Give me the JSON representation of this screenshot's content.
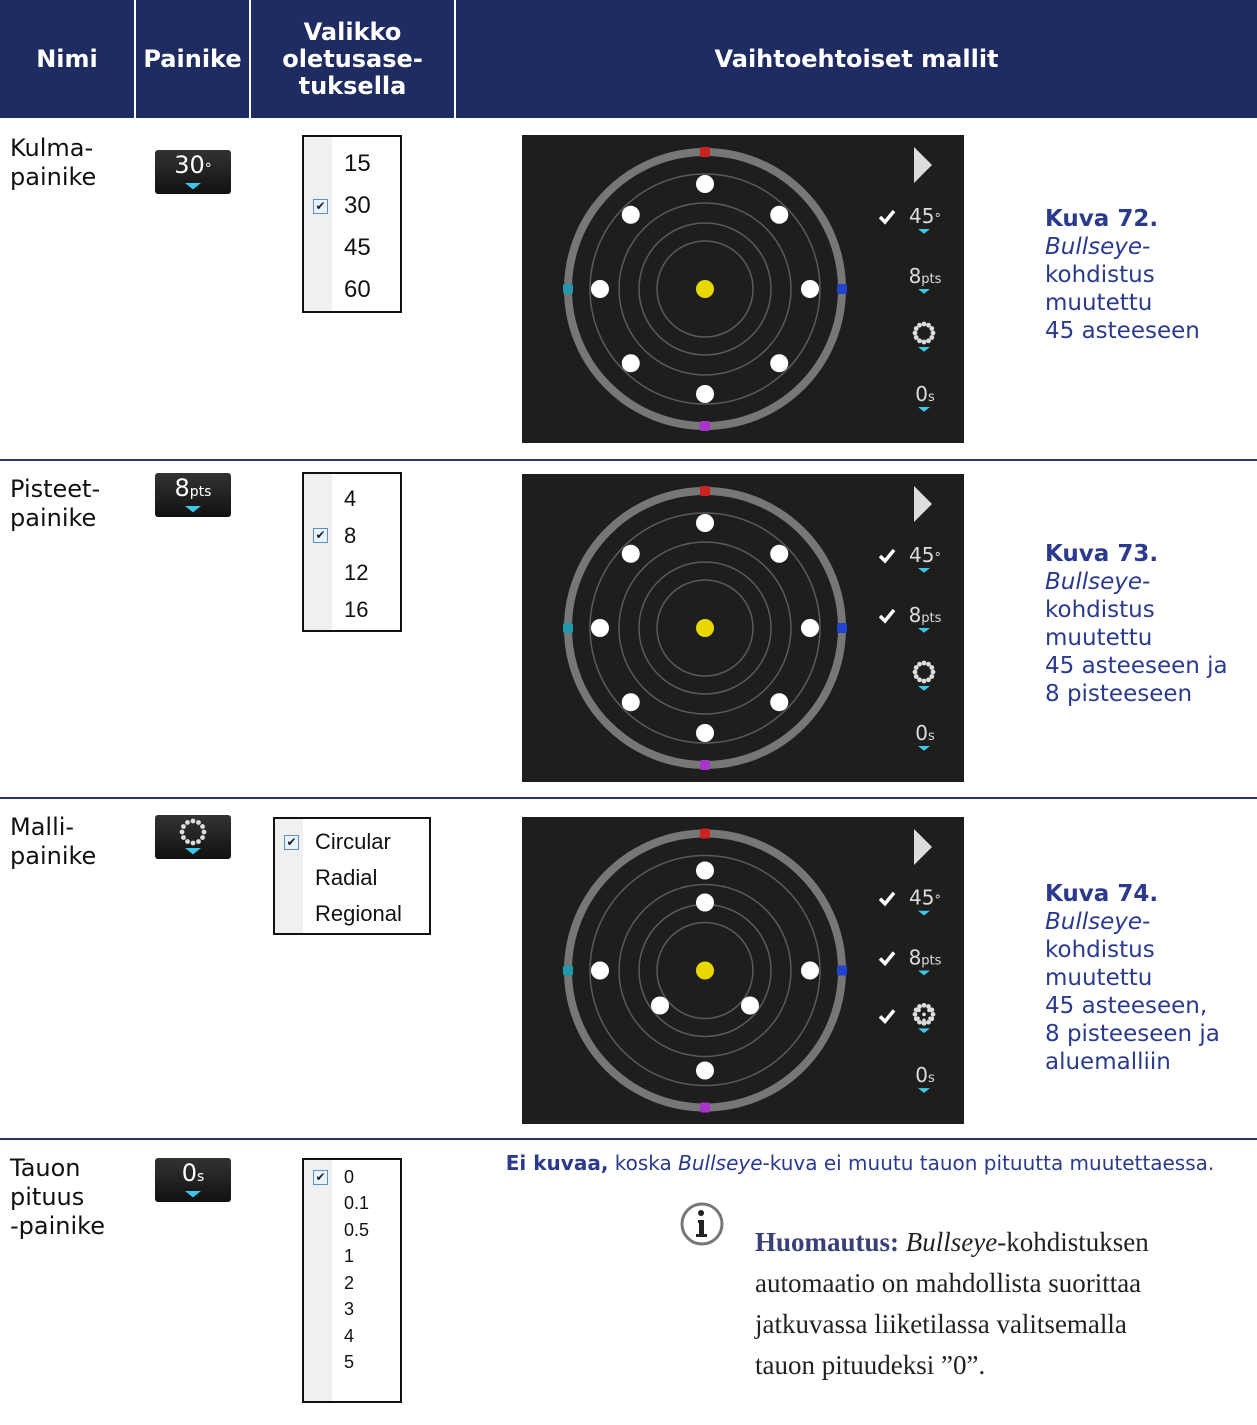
{
  "header": {
    "columns": [
      "Nimi",
      "Painike",
      "Valikko oletusase-tuksella",
      "Vaihtoehtoiset mallit"
    ]
  },
  "rows": [
    {
      "name": [
        "Kulma-",
        "painike"
      ],
      "button": {
        "value": "30",
        "unit": "°"
      },
      "menu": {
        "options": [
          "15",
          "30",
          "45",
          "60"
        ],
        "checked": 1
      },
      "image": {
        "pattern": "circular",
        "controls": [
          {
            "value": "45",
            "unit": "°",
            "checked": true
          },
          {
            "value": "8",
            "unit": "pts",
            "checked": false
          },
          {
            "checked": false
          },
          {
            "value": "0",
            "unit": "s",
            "checked": false
          }
        ]
      },
      "caption": {
        "title": "Kuva 72.",
        "lines": [
          "Bullseye-",
          "kohdistus",
          "muutettu",
          "45 asteeseen"
        ]
      }
    },
    {
      "name": [
        "Pisteet-",
        "painike"
      ],
      "button": {
        "value": "8",
        "unit": "pts"
      },
      "menu": {
        "options": [
          "4",
          "8",
          "12",
          "16"
        ],
        "checked": 1
      },
      "image": {
        "pattern": "circular",
        "controls": [
          {
            "value": "45",
            "unit": "°",
            "checked": true
          },
          {
            "value": "8",
            "unit": "pts",
            "checked": true
          },
          {
            "checked": false
          },
          {
            "value": "0",
            "unit": "s",
            "checked": false
          }
        ]
      },
      "caption": {
        "title": "Kuva 73.",
        "lines": [
          "Bullseye-",
          "kohdistus",
          "muutettu",
          "45 asteeseen ja",
          "8 pisteeseen"
        ]
      }
    },
    {
      "name": [
        "Malli-",
        "painike"
      ],
      "button": {},
      "menu": {
        "options": [
          "Circular",
          "Radial",
          "Regional"
        ],
        "checked": 0
      },
      "image": {
        "pattern": "regional",
        "controls": [
          {
            "value": "45",
            "unit": "°",
            "checked": true
          },
          {
            "value": "8",
            "unit": "pts",
            "checked": true
          },
          {
            "checked": true
          },
          {
            "value": "0",
            "unit": "s",
            "checked": false
          }
        ]
      },
      "caption": {
        "title": "Kuva 74.",
        "lines": [
          "Bullseye-",
          "kohdistus",
          "muutettu",
          "45 asteeseen,",
          "8 pisteeseen ja",
          "aluemalliin"
        ]
      }
    },
    {
      "name": [
        "Tauon",
        "pituus",
        "-painike"
      ],
      "button": {
        "value": "0",
        "unit": "s"
      },
      "menu": {
        "options": [
          "0",
          "0.1",
          "0.5",
          "1",
          "2",
          "3",
          "4",
          "5"
        ],
        "checked": 0
      },
      "no_image": {
        "bold": "Ei kuvaa,",
        "text1": " koska ",
        "italic": "Bullseye",
        "text2": "-kuva ei muutu tauon pituutta muutettaessa."
      },
      "note": {
        "label": "Huomautus:",
        "italic": "Bullseye",
        "text": "-kohdistuksen automaatio on mahdollista suorittaa jatkuvassa liiketilassa valitsemalla tauon pituudeksi ”0”."
      }
    }
  ]
}
